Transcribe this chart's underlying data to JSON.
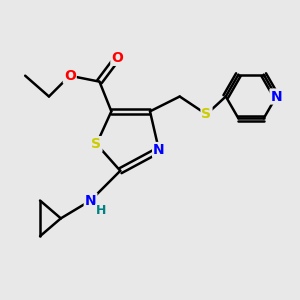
{
  "background_color": "#e8e8e8",
  "bond_color": "#000000",
  "atom_colors": {
    "S": "#cccc00",
    "N": "#0000ff",
    "O": "#ff0000",
    "H": "#008080",
    "C": "#000000"
  },
  "figsize": [
    3.0,
    3.0
  ],
  "dpi": 100,
  "xlim": [
    0,
    10
  ],
  "ylim": [
    0,
    10
  ]
}
